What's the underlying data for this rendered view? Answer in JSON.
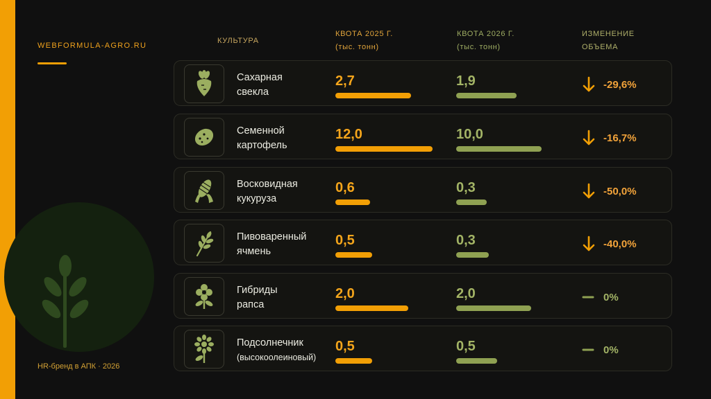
{
  "brand": "WEBFORMULA-AGRO.RU",
  "footer": "HR-бренд в АПК · 2026",
  "headers": {
    "culture": "КУЛЬТУРА",
    "quota_2025_line1": "КВОТА 2025 Г.",
    "quota_2025_line2": "(тыс. тонн)",
    "quota_2026_line1": "КВОТА 2026 Г.",
    "quota_2026_line2": "(тыс. тонн)",
    "change_line1": "ИЗМЕНЕНИЕ",
    "change_line2": "ОБЪЕМА"
  },
  "colors": {
    "accent": "#F29F05",
    "green": "#8FA152",
    "background": "#101010"
  },
  "rows": [
    {
      "name_line1": "Сахарная",
      "name_line2": "свекла",
      "icon": "beet-icon",
      "q2025": "2,7",
      "q2026": "1,9",
      "bar2025": 0.78,
      "bar2026": 0.71,
      "change": "-29,6%",
      "trend": "down"
    },
    {
      "name_line1": "Семенной",
      "name_line2": "картофель",
      "icon": "potato-icon",
      "q2025": "12,0",
      "q2026": "10,0",
      "bar2025": 1.0,
      "bar2026": 1.0,
      "change": "-16,7%",
      "trend": "down"
    },
    {
      "name_line1": "Восковидная",
      "name_line2": "кукуруза",
      "icon": "corn-icon",
      "q2025": "0,6",
      "q2026": "0,3",
      "bar2025": 0.36,
      "bar2026": 0.36,
      "change": "-50,0%",
      "trend": "down"
    },
    {
      "name_line1": "Пивоваренный",
      "name_line2": "ячмень",
      "icon": "barley-icon",
      "q2025": "0,5",
      "q2026": "0,3",
      "bar2025": 0.38,
      "bar2026": 0.38,
      "change": "-40,0%",
      "trend": "down"
    },
    {
      "name_line1": "Гибриды",
      "name_line2": "рапса",
      "icon": "rapeseed-flower-icon",
      "q2025": "2,0",
      "q2026": "2,0",
      "bar2025": 0.75,
      "bar2026": 0.88,
      "change": "0%",
      "trend": "flat"
    },
    {
      "name_line1": "Подсолнечник",
      "name_line2": "(высокоолеиновый)",
      "icon": "sunflower-icon",
      "q2025": "0,5",
      "q2026": "0,5",
      "bar2025": 0.38,
      "bar2026": 0.48,
      "change": "0%",
      "trend": "flat"
    }
  ]
}
